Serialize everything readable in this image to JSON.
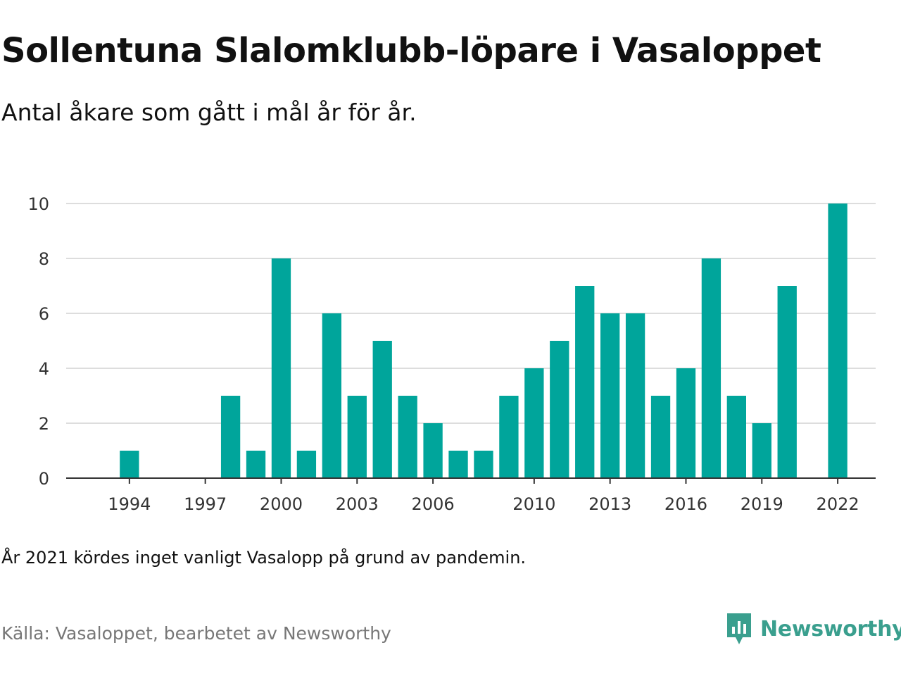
{
  "header": {
    "title": "Sollentuna Slalomklubb-löpare i Vasaloppet",
    "subtitle": "Antal åkare som gått i mål år för år."
  },
  "footer": {
    "note": "År 2021 kördes inget vanligt Vasalopp på grund av pandemin.",
    "source": "Källa: Vasaloppet, bearbetet av Newsworthy",
    "brand_name": "Newsworthy",
    "brand_icon": "newsworthy-logo-icon",
    "brand_color": "#3a9f8e"
  },
  "colors": {
    "bar": "#00a59b",
    "grid": "#dddddd",
    "axis": "#333333"
  },
  "chart_data": {
    "type": "bar",
    "title": "Sollentuna Slalomklubb-löpare i Vasaloppet",
    "subtitle": "Antal åkare som gått i mål år för år.",
    "xlabel": "",
    "ylabel": "",
    "ylim": [
      0,
      10
    ],
    "yticks": [
      0,
      2,
      4,
      6,
      8,
      10
    ],
    "xticks": [
      1994,
      1997,
      2000,
      2003,
      2006,
      2010,
      2013,
      2016,
      2019,
      2022
    ],
    "xlim": [
      1992,
      2023
    ],
    "grid": true,
    "legend": "none",
    "x": [
      1994,
      1998,
      1999,
      2000,
      2001,
      2002,
      2003,
      2004,
      2005,
      2006,
      2007,
      2008,
      2009,
      2010,
      2011,
      2012,
      2013,
      2014,
      2015,
      2016,
      2017,
      2018,
      2019,
      2020,
      2022
    ],
    "values": [
      1,
      3,
      1,
      8,
      1,
      6,
      3,
      5,
      3,
      2,
      1,
      1,
      3,
      4,
      5,
      7,
      6,
      6,
      3,
      4,
      8,
      3,
      2,
      7,
      10
    ]
  }
}
